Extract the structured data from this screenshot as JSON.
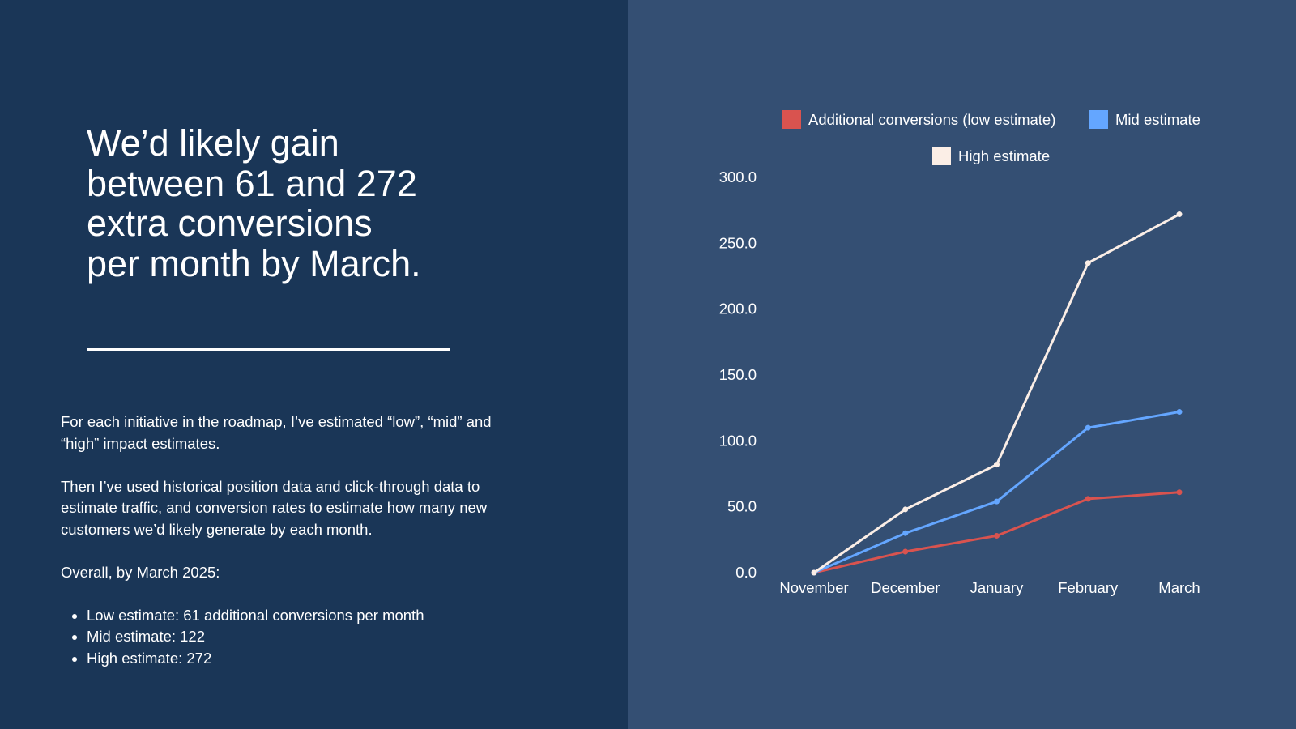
{
  "headline": {
    "lines": [
      "We’d likely gain",
      "between 61 and 272",
      "extra conversions",
      "per month by March."
    ]
  },
  "body": {
    "paragraphs": [
      "For each initiative in the roadmap, I’ve estimated “low”, “mid” and “high” impact estimates.",
      "Then I’ve used historical position data and click-through data to estimate traffic, and conversion rates to estimate how many new customers we’d likely generate by each month.",
      "Overall, by March 2025:"
    ],
    "bullets": [
      "Low estimate: 61 additional conversions per month",
      "Mid estimate: 122",
      "High estimate: 272"
    ]
  },
  "colors": {
    "left_background": "#1a3657",
    "right_background": "#344f73",
    "low": "#d9534f",
    "mid": "#64a6ff",
    "high": "#fbeee6"
  },
  "chart_data": {
    "type": "line",
    "categories": [
      "November",
      "December",
      "January",
      "February",
      "March"
    ],
    "series": [
      {
        "name": "Additional conversions (low estimate)",
        "values": [
          0,
          16,
          28,
          56,
          61
        ],
        "color": "#d9534f"
      },
      {
        "name": "Mid estimate",
        "values": [
          0,
          30,
          54,
          110,
          122
        ],
        "color": "#64a6ff"
      },
      {
        "name": "High estimate",
        "values": [
          0,
          48,
          82,
          235,
          272
        ],
        "color": "#fbeee6"
      }
    ],
    "y_ticks": [
      "0.0",
      "50.0",
      "100.0",
      "150.0",
      "200.0",
      "250.0",
      "300.0"
    ],
    "ylim": [
      0,
      300
    ],
    "grid": false,
    "legend_position": "top"
  }
}
